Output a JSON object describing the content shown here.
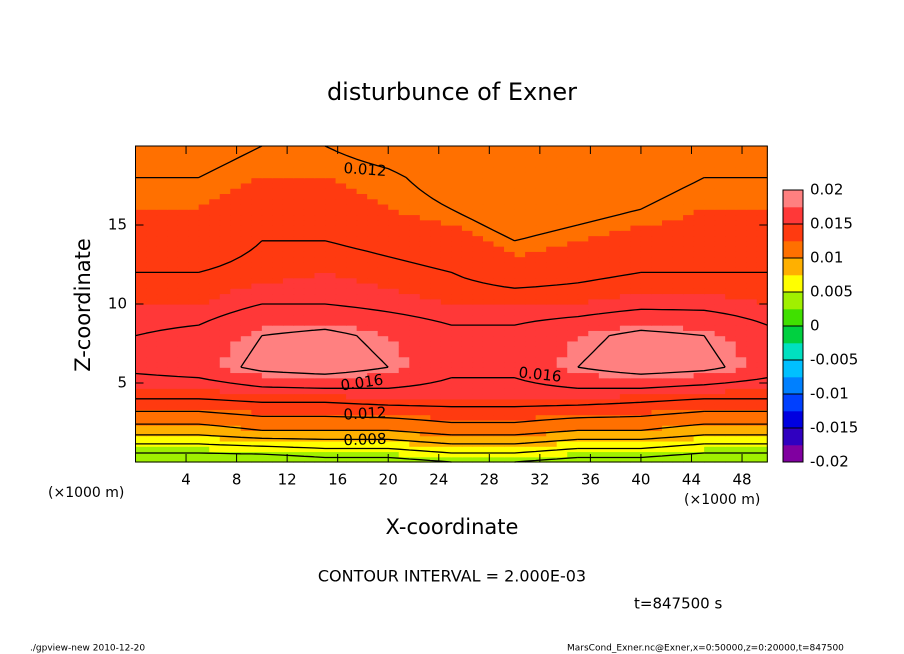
{
  "chart_data": {
    "type": "contour",
    "title": "disturbunce of Exner",
    "xlabel": "X-coordinate",
    "ylabel": "Z-coordinate",
    "xlabel_unit": "(×1000 m)",
    "ylabel_unit": "(×1000 m)",
    "x": [
      0,
      5,
      10,
      15,
      20,
      25,
      30,
      35,
      40,
      45,
      50
    ],
    "y": [
      0,
      2,
      4,
      6,
      8,
      10,
      12,
      14,
      16,
      18,
      20
    ],
    "z": [
      [
        0.002,
        0.002,
        0.002,
        0.003,
        0.003,
        0.004,
        0.004,
        0.003,
        0.003,
        0.002,
        0.002
      ],
      [
        0.009,
        0.009,
        0.01,
        0.01,
        0.01,
        0.011,
        0.011,
        0.01,
        0.01,
        0.009,
        0.009
      ],
      [
        0.014,
        0.014,
        0.0145,
        0.0145,
        0.015,
        0.015,
        0.015,
        0.015,
        0.0145,
        0.014,
        0.014
      ],
      [
        0.0165,
        0.017,
        0.0185,
        0.019,
        0.018,
        0.0165,
        0.0165,
        0.018,
        0.019,
        0.0185,
        0.017
      ],
      [
        0.016,
        0.0165,
        0.018,
        0.0185,
        0.0175,
        0.0165,
        0.0165,
        0.0175,
        0.0185,
        0.018,
        0.0165
      ],
      [
        0.015,
        0.015,
        0.016,
        0.016,
        0.0155,
        0.015,
        0.015,
        0.015,
        0.0155,
        0.0155,
        0.015
      ],
      [
        0.014,
        0.014,
        0.0145,
        0.015,
        0.0145,
        0.014,
        0.013,
        0.0135,
        0.014,
        0.014,
        0.014
      ],
      [
        0.013,
        0.013,
        0.014,
        0.014,
        0.0135,
        0.013,
        0.012,
        0.0125,
        0.013,
        0.013,
        0.013
      ],
      [
        0.0125,
        0.0125,
        0.013,
        0.013,
        0.0125,
        0.012,
        0.011,
        0.0115,
        0.012,
        0.0125,
        0.0125
      ],
      [
        0.012,
        0.012,
        0.0125,
        0.0125,
        0.0122,
        0.0115,
        0.0105,
        0.011,
        0.0115,
        0.012,
        0.012
      ],
      [
        0.0115,
        0.0115,
        0.012,
        0.012,
        0.0115,
        0.011,
        0.01,
        0.0105,
        0.011,
        0.0115,
        0.0115
      ]
    ],
    "xlim": [
      0,
      50
    ],
    "ylim": [
      0,
      20
    ],
    "xticks": [
      4,
      8,
      12,
      16,
      20,
      24,
      28,
      32,
      36,
      40,
      44,
      48
    ],
    "yticks": [
      5,
      10,
      15
    ],
    "clim": [
      -0.02,
      0.02
    ],
    "cticks": [
      0.02,
      0.015,
      0.01,
      0.005,
      0,
      -0.005,
      -0.01,
      -0.015,
      -0.02
    ],
    "colors": [
      "#8000a0",
      "#3000c0",
      "#0000e0",
      "#0040ff",
      "#0080ff",
      "#00c0ff",
      "#00e0c0",
      "#00d040",
      "#40e000",
      "#a0f000",
      "#ffff00",
      "#ffb000",
      "#ff7000",
      "#ff3a10",
      "#ff3838",
      "#ff8080"
    ],
    "contour_levels": [
      0.002,
      0.004,
      0.006,
      0.008,
      0.01,
      0.012,
      0.014,
      0.016,
      0.018
    ],
    "contour_labels": [
      0.012,
      0.016,
      0.016,
      0.012,
      0.008
    ],
    "contour_note": "CONTOUR INTERVAL = 2.000E-03",
    "time_note": "t=847500 s",
    "footer_left": "./gpview-new   2010-12-20",
    "footer_right": "MarsCond_Exner.nc@Exner,x=0:50000,z=0:20000,t=847500"
  }
}
